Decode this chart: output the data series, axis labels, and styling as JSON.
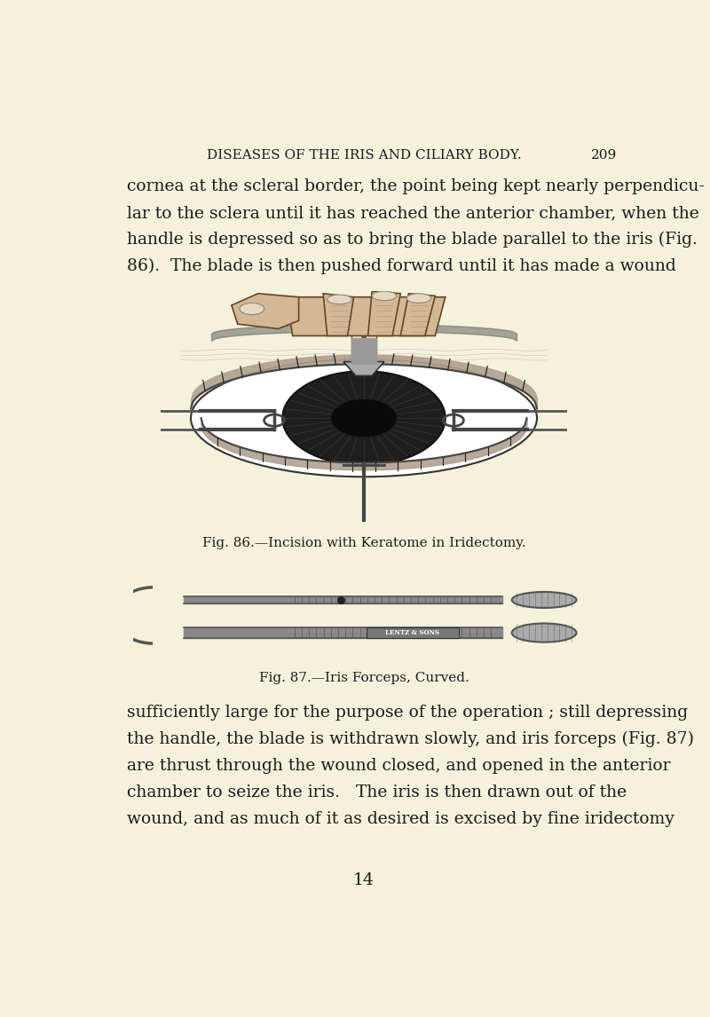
{
  "bg_color": "#f5f2dc",
  "page_width": 8.0,
  "page_height": 11.46,
  "header_text": "DISEASES OF THE IRIS AND CILIARY BODY.",
  "header_page": "209",
  "top_para_lines": [
    "cornea at the scleral border, the point being kept nearly perpendicu-",
    "lar to the sclera until it has reached the anterior chamber, when the",
    "handle is depressed so as to bring the blade parallel to the iris (Fig.",
    "86).  The blade is then pushed forward until it has made a wound"
  ],
  "fig86_caption": "Fig. 86.—Incision with Keratome in Iridectomy.",
  "fig87_caption": "Fig. 87.—Iris Forceps, Curved.",
  "bottom_para_lines": [
    "sufficiently large for the purpose of the operation ; still depressing",
    "the handle, the blade is withdrawn slowly, and iris forceps (Fig. 87)",
    "are thrust through the wound closed, and opened in the anterior",
    "chamber to seize the iris.   The iris is then drawn out of the",
    "wound, and as much of it as desired is excised by fine iridectomy"
  ],
  "footer_number": "14",
  "text_color": "#1a1a1a",
  "header_fontsize": 11,
  "body_fontsize": 13.5,
  "caption_fontsize": 11
}
